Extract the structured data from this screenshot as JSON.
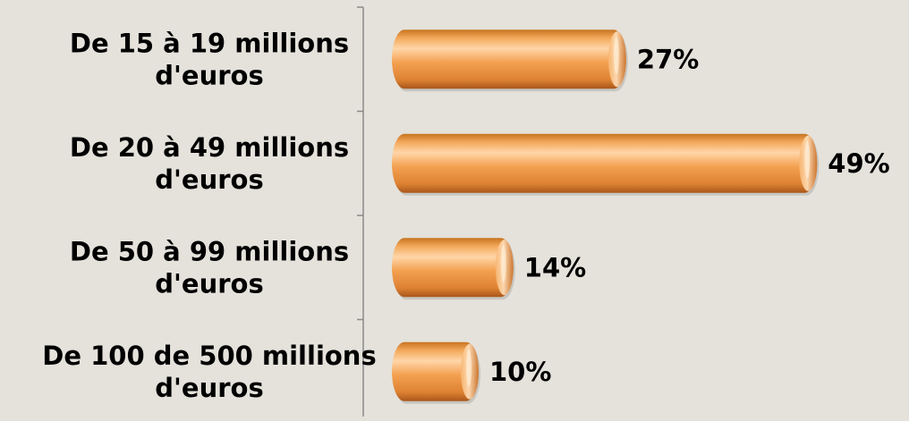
{
  "chart_data": {
    "type": "bar",
    "orientation": "horizontal",
    "categories": [
      [
        "De 15 à 19 millions",
        "d'euros"
      ],
      [
        "De 20 à 49 millions",
        "d'euros"
      ],
      [
        "De 50 à 99 millions",
        "d'euros"
      ],
      [
        "De 100 de 500 millions",
        "d'euros"
      ]
    ],
    "values": [
      27,
      49,
      14,
      10
    ],
    "value_labels": [
      "27%",
      "49%",
      "14%",
      "10%"
    ],
    "xlim": [
      0,
      50
    ],
    "grid": false,
    "legend": "none",
    "colors": {
      "bar": "#f0a050",
      "bar_light": "#ffd2a0",
      "bar_dark": "#b8621c",
      "axis": "#8a8a8a",
      "background": "#e4e2db"
    }
  }
}
